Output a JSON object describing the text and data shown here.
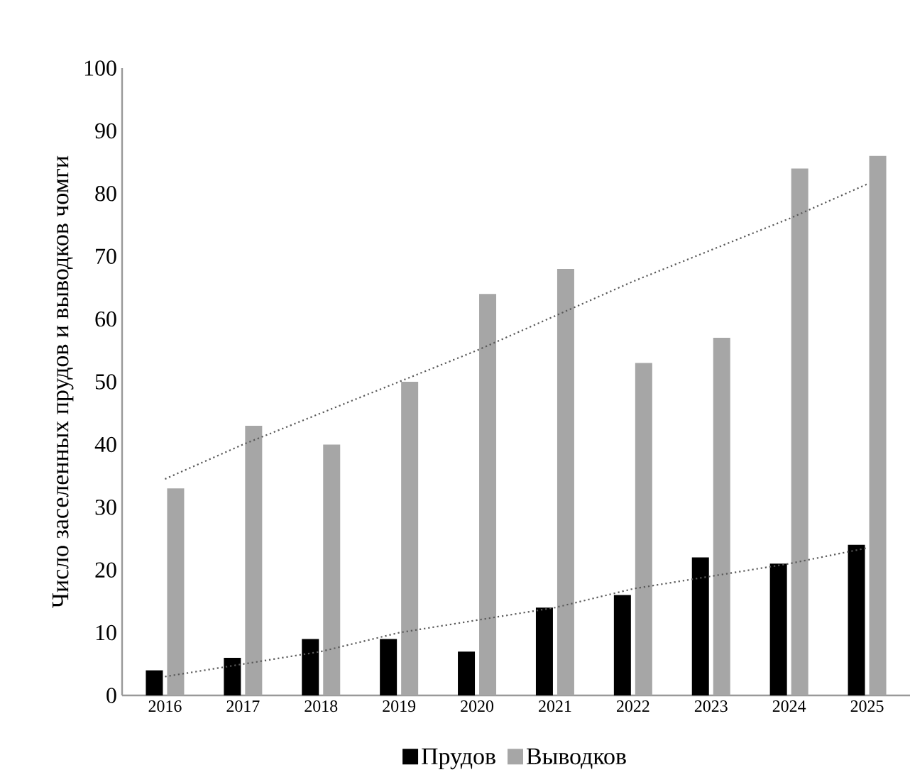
{
  "chart_data": {
    "type": "bar",
    "ylabel": "Число заселенных прудов и выводков чомги",
    "categories": [
      "2016",
      "2017",
      "2018",
      "2019",
      "2020",
      "2021",
      "2022",
      "2023",
      "2024",
      "2025"
    ],
    "series": [
      {
        "name": "Прудов",
        "color": "#000000",
        "values": [
          4,
          6,
          9,
          9,
          7,
          14,
          16,
          22,
          21,
          24
        ]
      },
      {
        "name": "Выводков",
        "color": "#a6a6a6",
        "values": [
          33,
          43,
          40,
          50,
          64,
          68,
          53,
          57,
          84,
          86
        ]
      },
      {
        "type": "line",
        "values": [
          3,
          5,
          7,
          10,
          12,
          14,
          17,
          19,
          21,
          23.5
        ],
        "color": "#595959",
        "line_style": "dotted"
      },
      {
        "type": "line",
        "values": [
          34.5,
          40,
          45,
          50,
          55,
          60.5,
          66,
          71,
          76,
          81.5
        ],
        "color": "#595959",
        "line_style": "dotted"
      }
    ],
    "ylim": [
      0,
      100
    ],
    "yticks": [
      0,
      10,
      20,
      30,
      40,
      50,
      60,
      70,
      80,
      90,
      100
    ],
    "legend": "bottom",
    "grid": false
  }
}
